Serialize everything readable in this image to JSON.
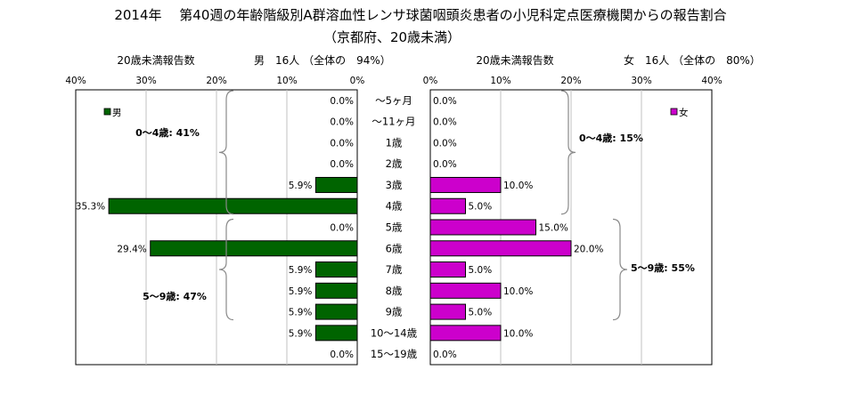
{
  "title": "2014年　 第40週の年齢階級別A群溶血性レンサ球菌咽頭炎患者の小児科定点医療機関からの報告割合",
  "subtitle": "（京都府、20歳未満）",
  "colors": {
    "male": "#006400",
    "female": "#cc00cc",
    "frame": "#000000",
    "grid": "#c0c0c0"
  },
  "chart_data": {
    "type": "bar",
    "categories": [
      "～5ヶ月",
      "～11ヶ月",
      "1歳",
      "2歳",
      "3歳",
      "4歳",
      "5歳",
      "6歳",
      "7歳",
      "8歳",
      "9歳",
      "10～14歳",
      "15～19歳"
    ],
    "panels": [
      {
        "side": "male",
        "header_left": "20歳未満報告数",
        "header_right": "男　16人 （全体の　94%）",
        "legend": "男",
        "xlim": [
          0,
          40
        ],
        "ticks": [
          "40%",
          "30%",
          "20%",
          "10%",
          "0%"
        ],
        "values": [
          0.0,
          0.0,
          0.0,
          0.0,
          5.9,
          35.3,
          0.0,
          29.4,
          5.9,
          5.9,
          5.9,
          5.9,
          0.0
        ],
        "labels": [
          "0.0%",
          "0.0%",
          "0.0%",
          "0.0%",
          "5.9%",
          "35.3%",
          "0.0%",
          "29.4%",
          "5.9%",
          "5.9%",
          "5.9%",
          "5.9%",
          "0.0%"
        ],
        "groups": [
          "0～4歳: 41%",
          "5～9歳: 47%"
        ]
      },
      {
        "side": "female",
        "header_left": "20歳未満報告数",
        "header_right": "女　16人 （全体の　80%）",
        "legend": "女",
        "xlim": [
          0,
          40
        ],
        "ticks": [
          "0%",
          "10%",
          "20%",
          "30%",
          "40%"
        ],
        "values": [
          0.0,
          0.0,
          0.0,
          0.0,
          10.0,
          5.0,
          15.0,
          20.0,
          5.0,
          10.0,
          5.0,
          10.0,
          0.0
        ],
        "labels": [
          "0.0%",
          "0.0%",
          "0.0%",
          "0.0%",
          "10.0%",
          "5.0%",
          "15.0%",
          "20.0%",
          "5.0%",
          "10.0%",
          "5.0%",
          "10.0%",
          "0.0%"
        ],
        "groups": [
          "0～4歳: 15%",
          "5～9歳: 55%"
        ]
      }
    ]
  }
}
